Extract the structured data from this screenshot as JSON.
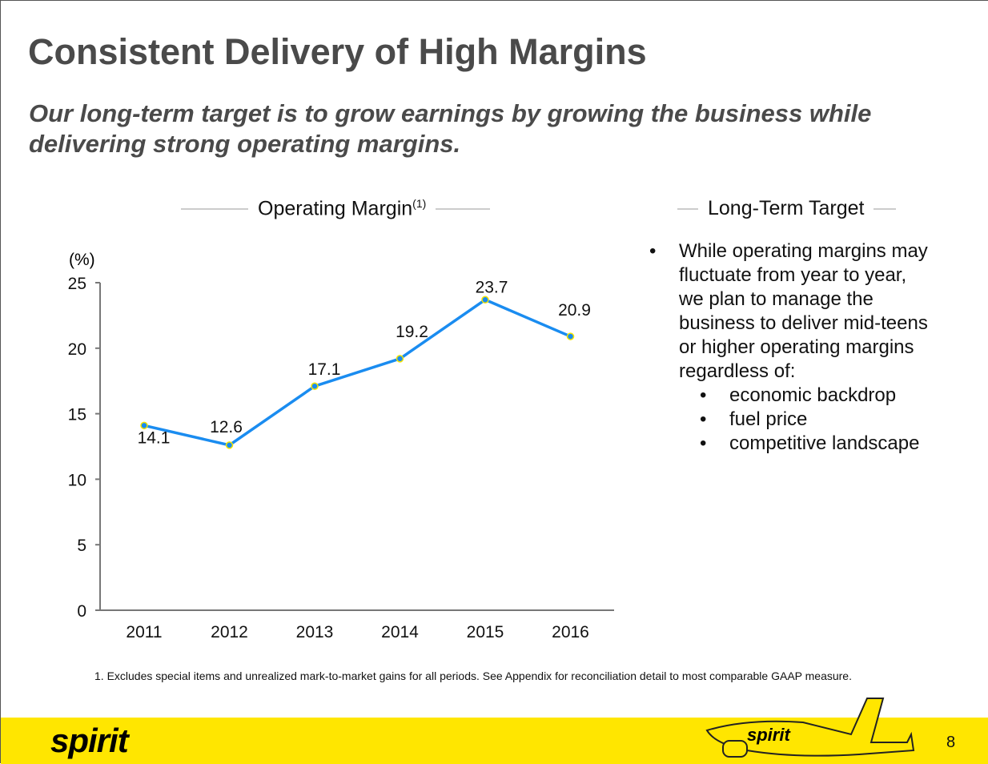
{
  "title": "Consistent Delivery of High Margins",
  "subtitle": "Our long-term target is to grow earnings by growing the business while delivering strong operating margins.",
  "chart_header": {
    "label": "Operating Margin",
    "superscript": "(1)"
  },
  "target_header": "Long-Term Target",
  "target_text": "While operating margins may fluctuate from year to year, we plan to manage the business to deliver mid-teens or higher operating margins regardless of:",
  "target_items": [
    "economic backdrop",
    "fuel price",
    "competitive landscape"
  ],
  "footnote": "1.  Excludes special items and unrealized mark-to-market gains for all periods.  See Appendix for reconciliation detail to most comparable GAAP measure.",
  "footer": {
    "logo": "spirit",
    "page_number": "8"
  },
  "colors": {
    "line": "#1a8cf0",
    "marker_edge": "#f5e400",
    "footer": "#ffe600"
  },
  "chart_data": {
    "type": "line",
    "title": "Operating Margin",
    "ylabel": "(%)",
    "xlabel": "",
    "categories": [
      "2011",
      "2012",
      "2013",
      "2014",
      "2015",
      "2016"
    ],
    "series": [
      {
        "values": [
          14.1,
          12.6,
          17.1,
          19.2,
          23.7,
          20.9
        ],
        "labels": [
          "14.1",
          "12.6",
          "17.1",
          "19.2",
          "23.7",
          "20.9"
        ]
      }
    ],
    "ylim": [
      0,
      25
    ],
    "yticks": [
      "0",
      "5",
      "10",
      "15",
      "20",
      "25"
    ],
    "grid": false,
    "legend": "none"
  }
}
